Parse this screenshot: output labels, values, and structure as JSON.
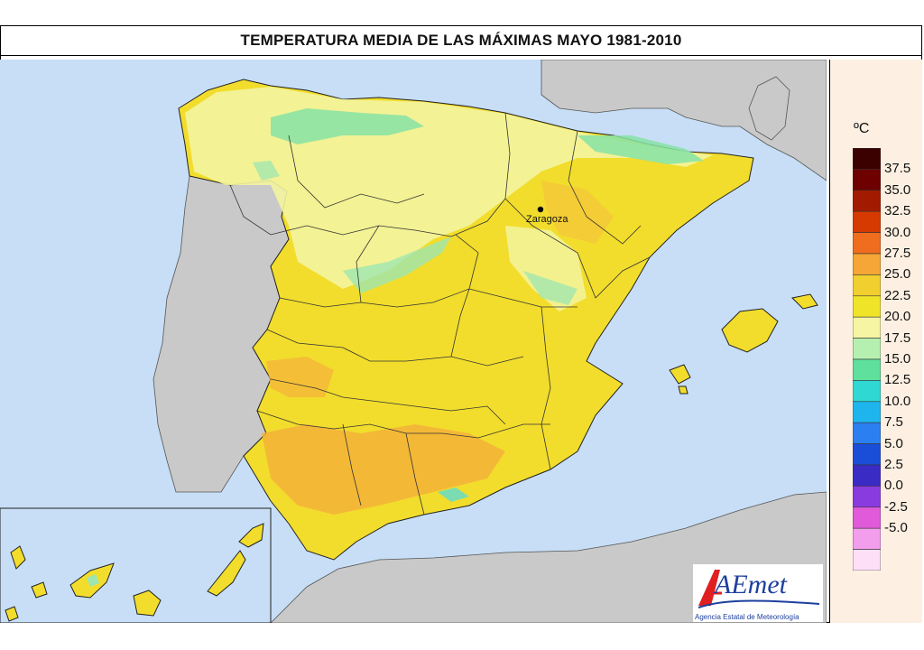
{
  "title": "TEMPERATURA MEDIA DE LAS MÁXIMAS MAYO 1981-2010",
  "map": {
    "city_label": "Zaragoza",
    "colors": {
      "sea": "#c7def6",
      "land_other": "#c9c9c9",
      "border": "#222222"
    }
  },
  "legend": {
    "unit": "ºC",
    "labels": [
      "37.5",
      "35.0",
      "32.5",
      "30.0",
      "27.5",
      "25.0",
      "22.5",
      "20.0",
      "17.5",
      "15.0",
      "12.5",
      "10.0",
      "7.5",
      "5.0",
      "2.5",
      "0.0",
      "-2.5",
      "-5.0"
    ],
    "colors": [
      "#3b0000",
      "#6e0000",
      "#a21b00",
      "#d63a00",
      "#f06c1e",
      "#f5a636",
      "#f0cf2e",
      "#efe428",
      "#f5f5a3",
      "#b6f0b0",
      "#5fe09c",
      "#2fd8d2",
      "#1eb5ef",
      "#2b7ff0",
      "#1a4ed8",
      "#3a2bc4",
      "#8a3be0",
      "#e05ad9",
      "#f39ded",
      "#fde0f8"
    ]
  },
  "logo": {
    "text": "AEmet",
    "subtitle": "Agencia Estatal de Meteorología"
  }
}
